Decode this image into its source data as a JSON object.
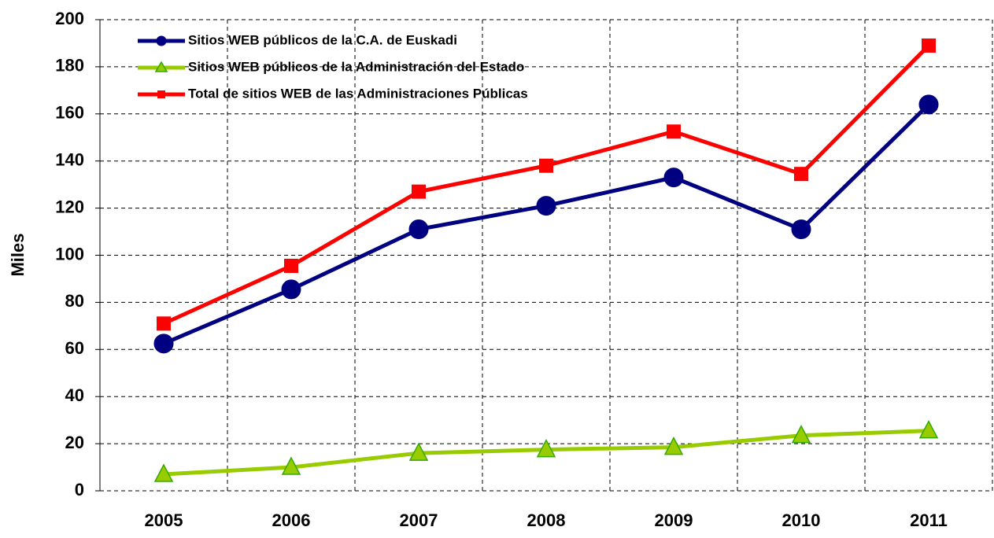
{
  "chart_data": {
    "type": "line",
    "ylabel": "Miles",
    "categories": [
      "2005",
      "2006",
      "2007",
      "2008",
      "2009",
      "2010",
      "2011"
    ],
    "series": [
      {
        "name": "Sitios WEB públicos de la C.A. de Euskadi",
        "color": "#000080",
        "marker": "circle",
        "values": [
          62.5,
          85.5,
          111,
          121,
          133,
          111,
          164
        ]
      },
      {
        "name": "Sitios WEB públicos de la Administración del  Estado",
        "color": "#99cc00",
        "marker": "triangle",
        "values": [
          7,
          10,
          16,
          17.5,
          18.5,
          23.5,
          25.5
        ]
      },
      {
        "name": "Total de sitios WEB de las Administraciones Públicas",
        "color": "#ff0000",
        "marker": "square",
        "values": [
          71,
          95.5,
          127,
          138,
          152.5,
          134.5,
          189
        ]
      }
    ],
    "ylim": [
      0,
      200
    ],
    "yticks": [
      0,
      20,
      40,
      60,
      80,
      100,
      120,
      140,
      160,
      180,
      200
    ],
    "grid": true,
    "legend_position": "upper left"
  }
}
